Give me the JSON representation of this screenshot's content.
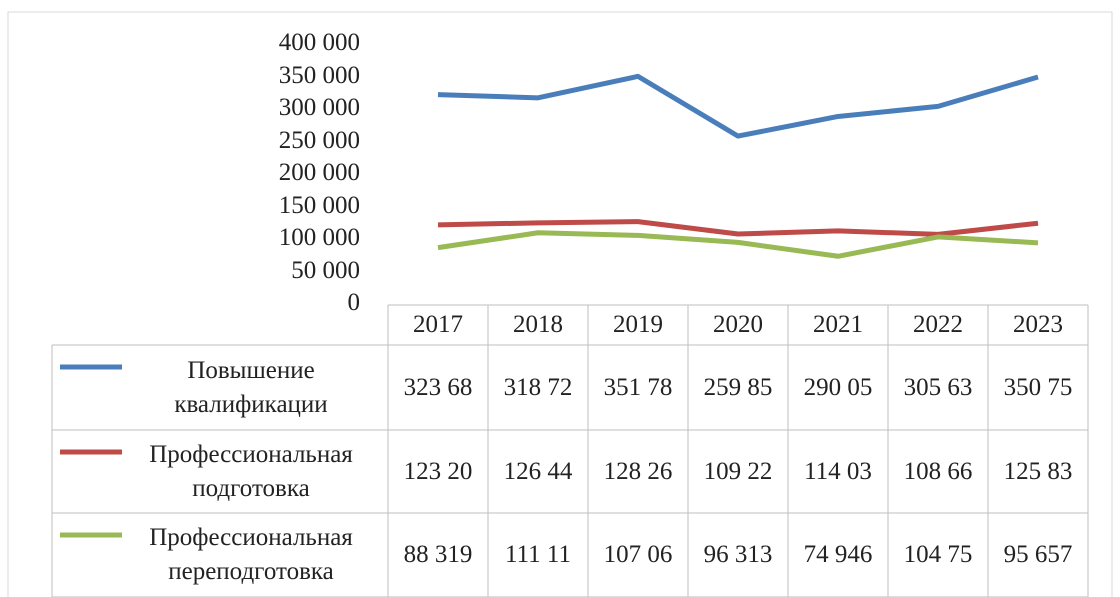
{
  "chart_data": {
    "type": "line",
    "categories": [
      "2017",
      "2018",
      "2019",
      "2020",
      "2021",
      "2022",
      "2023"
    ],
    "series": [
      {
        "name": "Повышение квалификации",
        "color": "#4a7ebb",
        "values": [
          323680,
          318720,
          351780,
          259850,
          290050,
          305630,
          350750
        ],
        "value_labels": [
          "323 68",
          "318 72",
          "351 78",
          "259 85",
          "290 05",
          "305 63",
          "350 75"
        ]
      },
      {
        "name": "Профессиональная подготовка",
        "color": "#be4b48",
        "values": [
          123200,
          126440,
          128260,
          109220,
          114030,
          108660,
          125830
        ],
        "value_labels": [
          "123 20",
          "126 44",
          "128 26",
          "109 22",
          "114 03",
          "108 66",
          "125 83"
        ]
      },
      {
        "name": "Профессиональная переподготовка",
        "color": "#98b954",
        "values": [
          88319,
          111110,
          107060,
          96313,
          74946,
          104750,
          95657
        ],
        "value_labels": [
          "88 319",
          "111 11",
          "107 06",
          "96 313",
          "74 946",
          "104 75",
          "95 657"
        ]
      }
    ],
    "ylim": [
      0,
      400000
    ],
    "yticks": [
      0,
      {
        "value": 50000,
        "label": "50 000"
      },
      {
        "value": 100000,
        "label": "100 000"
      },
      {
        "value": 150000,
        "label": "150 000"
      },
      {
        "value": 200000,
        "label": "200 000"
      },
      {
        "value": 250000,
        "label": "250 000"
      },
      {
        "value": 300000,
        "label": "300 000"
      },
      {
        "value": 350000,
        "label": "350 000"
      },
      {
        "value": 400000,
        "label": "400 000"
      }
    ],
    "grid": false
  }
}
